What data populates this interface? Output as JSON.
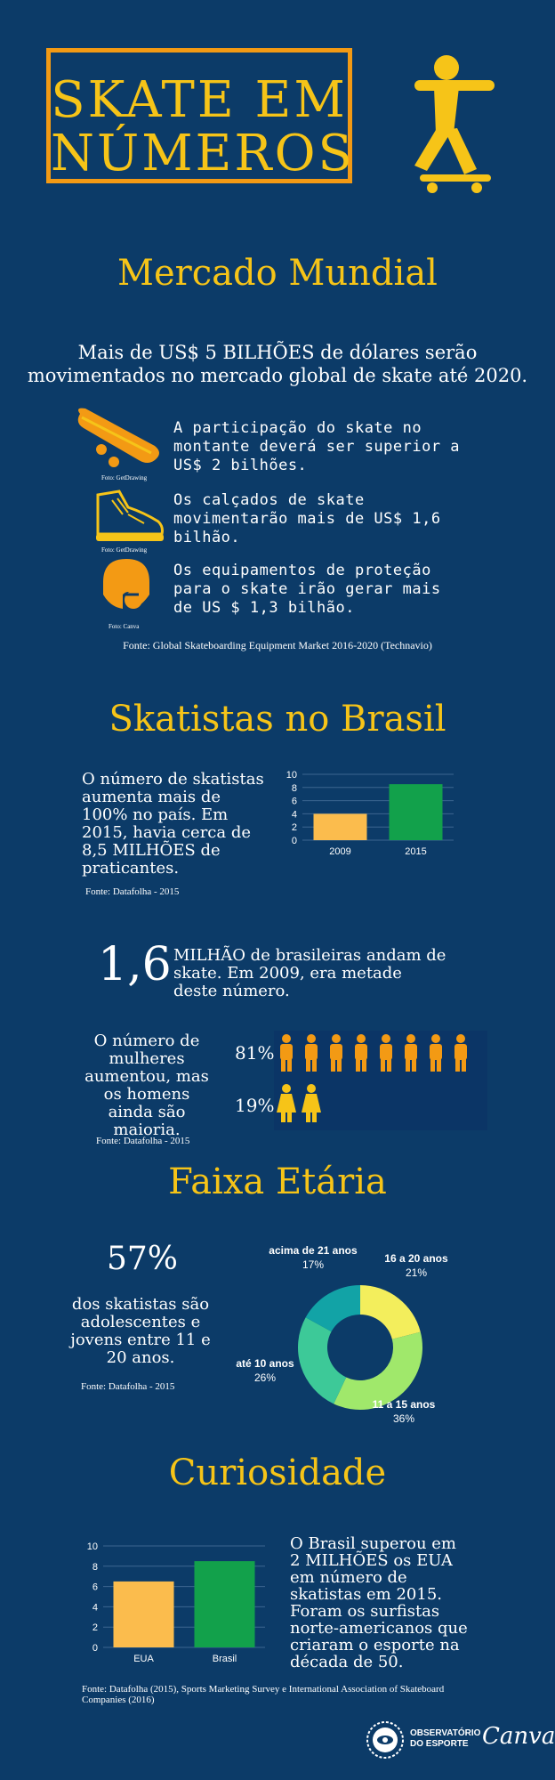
{
  "header": {
    "title_line1": "SKATE EM",
    "title_line2": "NÚMEROS",
    "skater_icon": "skateboarder-icon"
  },
  "mercado": {
    "title": "Mercado Mundial",
    "intro_line1": "Mais de US$ 5 BILHÕES de dólares serão",
    "intro_line2": "movimentados no mercado global de skate até 2020.",
    "items": [
      {
        "icon": "skateboard-icon",
        "caption": "Foto: GetDrawing",
        "text": "A participação do skate no montante deverá ser superior a US$ 2 bilhões."
      },
      {
        "icon": "sneaker-icon",
        "caption": "Foto: GetDrawing",
        "text": "Os calçados de skate movimentarão mais de US$ 1,6 bilhão."
      },
      {
        "icon": "helmet-icon",
        "caption": "Foto: Canva",
        "text": "Os equipamentos de proteção para o skate irão gerar mais de US $ 1,3 bilhão."
      }
    ],
    "source": "Fonte:  Global Skateboarding Equipment Market 2016-2020 (Technavio)"
  },
  "brasil": {
    "title": "Skatistas no Brasil",
    "text": "O número de skatistas aumenta mais de 100% no país. Em 2015, havia cerca de 8,5 MILHÕES de praticantes.",
    "source": "Fonte: Datafolha - 2015"
  },
  "mulheres": {
    "big_number": "1,6",
    "headline": "MILHÃO de brasileiras andam de skate.  Em 2009, era metade deste número.",
    "text": "O número de mulheres aumentou, mas os homens ainda são maioria.",
    "male_pct": "81%",
    "female_pct": "19%",
    "male_share": 0.81,
    "female_share": 0.19,
    "source": "Fonte: Datafolha - 2015"
  },
  "faixa": {
    "title": "Faixa Etária",
    "big_number": "57%",
    "text": "dos skatistas são adolescentes e jovens entre 11 e 20 anos.",
    "source": "Fonte: Datafolha - 2015"
  },
  "curiosidade": {
    "title": "Curiosidade",
    "text": "O Brasil superou em 2 MILHÕES os EUA em número de skatistas em 2015. Foram os surfistas norte-americanos que criaram o esporte na década de 50.",
    "source": "Fonte: Datafolha (2015), Sports Marketing Survey e International Association of Skateboard Companies (2016)"
  },
  "footer": {
    "logo_line1": "OBSERVATÓRIO",
    "logo_line2": "DO ESPORTE",
    "canva": "Canva"
  },
  "colors": {
    "background": "#0c3b68",
    "accent_yellow": "#f6c418",
    "accent_orange": "#f39a14",
    "bar_orange": "#fbbc4d",
    "bar_green": "#12a14b"
  },
  "chart_data": [
    {
      "type": "bar",
      "categories": [
        "2009",
        "2015"
      ],
      "values": [
        4,
        8.5
      ],
      "ylim": [
        0,
        10
      ],
      "yticks": [
        0,
        2,
        4,
        6,
        8,
        10
      ],
      "colors": [
        "#fbbc4d",
        "#12a14b"
      ],
      "grid": true
    },
    {
      "type": "pie",
      "donut": true,
      "labels": [
        "16 a 20 anos",
        "11 a 15 anos",
        "até 10 anos",
        "acima de 21 anos"
      ],
      "values": [
        21,
        36,
        26,
        17
      ],
      "display": [
        "21%",
        "36%",
        "26%",
        "17%"
      ],
      "colors": [
        "#f3ee5c",
        "#a0e86b",
        "#3dc998",
        "#12a3a6"
      ]
    },
    {
      "type": "bar",
      "categories": [
        "EUA",
        "Brasil"
      ],
      "values": [
        6.5,
        8.5
      ],
      "ylim": [
        0,
        10
      ],
      "yticks": [
        0,
        2,
        4,
        6,
        8,
        10
      ],
      "colors": [
        "#fbbc4d",
        "#12a14b"
      ],
      "grid": true
    }
  ]
}
